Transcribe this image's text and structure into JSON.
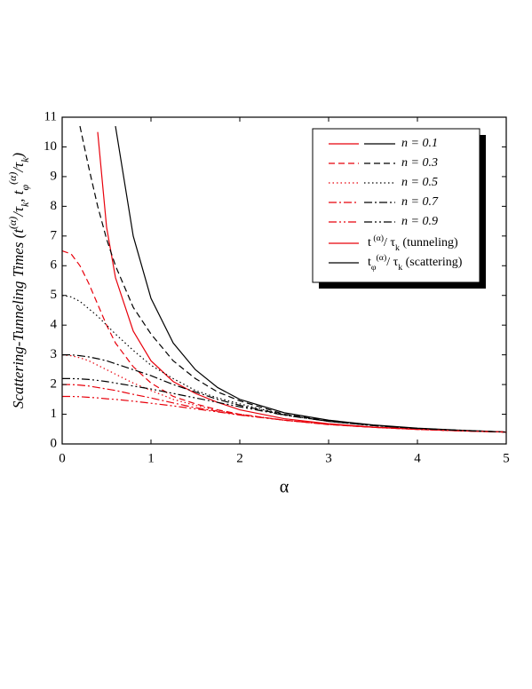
{
  "chart_data": {
    "type": "line",
    "x_label": "α",
    "y_label": [
      {
        "text": "Scattering-Tunneling Times"
      },
      {
        "text": "   (t"
      },
      {
        "text": "(α)",
        "pos": "sup"
      },
      {
        "text": "/τ"
      },
      {
        "text": "k",
        "pos": "sub"
      },
      {
        "text": ",  t"
      },
      {
        "text": "φ",
        "pos": "sub"
      },
      {
        "text": "(α)",
        "pos": "sup"
      },
      {
        "text": "/τ"
      },
      {
        "text": "k",
        "pos": "sub"
      },
      {
        "text": ")"
      }
    ],
    "xlim": [
      0,
      5
    ],
    "xticks": [
      0,
      1,
      2,
      3,
      4,
      5
    ],
    "ylim": [
      0,
      11
    ],
    "yticks": [
      0,
      1,
      2,
      3,
      4,
      5,
      6,
      7,
      8,
      9,
      10,
      11
    ],
    "legend": "upper right",
    "x": [
      0,
      0.1,
      0.2,
      0.3,
      0.4,
      0.5,
      0.6,
      0.8,
      1,
      1.25,
      1.5,
      1.75,
      2,
      2.5,
      3,
      3.5,
      4,
      4.5,
      5
    ],
    "kinds": {
      "tunneling": {
        "color": "#e8000b",
        "label": [
          {
            "text": "t"
          },
          {
            "text": " (α)",
            "pos": "sup"
          },
          {
            "text": "/ τ"
          },
          {
            "text": "k",
            "pos": "sub"
          },
          {
            "text": " (tunneling)"
          }
        ]
      },
      "scattering": {
        "color": "#000000",
        "label": [
          {
            "text": "t"
          },
          {
            "text": "φ",
            "pos": "sub"
          },
          {
            "text": "(α)",
            "pos": "sup"
          },
          {
            "text": "/ τ"
          },
          {
            "text": "k",
            "pos": "sub"
          },
          {
            "text": " (scattering)"
          }
        ]
      }
    },
    "groups": [
      {
        "name": "n = 0.1",
        "dash": "solid",
        "tunneling": [
          null,
          null,
          null,
          null,
          10.5,
          7.3,
          5.6,
          3.8,
          2.8,
          2.1,
          1.7,
          1.4,
          1.15,
          0.85,
          0.68,
          0.57,
          0.5,
          0.44,
          0.4
        ],
        "scattering": [
          null,
          null,
          null,
          null,
          null,
          null,
          10.7,
          7.0,
          4.9,
          3.4,
          2.5,
          1.9,
          1.5,
          1.05,
          0.8,
          0.64,
          0.53,
          0.46,
          0.4
        ]
      },
      {
        "name": "n = 0.3",
        "dash": "dash",
        "tunneling": [
          6.5,
          6.4,
          6.0,
          5.4,
          4.7,
          4.0,
          3.4,
          2.6,
          2.05,
          1.6,
          1.35,
          1.15,
          1.0,
          0.8,
          0.65,
          0.56,
          0.49,
          0.44,
          0.4
        ],
        "scattering": [
          null,
          null,
          10.7,
          9.3,
          8.0,
          6.9,
          6.0,
          4.6,
          3.7,
          2.8,
          2.2,
          1.75,
          1.45,
          1.0,
          0.78,
          0.63,
          0.52,
          0.46,
          0.4
        ]
      },
      {
        "name": "n = 0.5",
        "dash": "dot",
        "tunneling": [
          3.0,
          2.97,
          2.9,
          2.8,
          2.65,
          2.5,
          2.35,
          2.05,
          1.8,
          1.5,
          1.3,
          1.12,
          1.0,
          0.8,
          0.66,
          0.56,
          0.49,
          0.44,
          0.4
        ],
        "scattering": [
          5.0,
          4.95,
          4.8,
          4.55,
          4.3,
          4.0,
          3.7,
          3.15,
          2.65,
          2.2,
          1.8,
          1.55,
          1.35,
          0.98,
          0.76,
          0.62,
          0.52,
          0.45,
          0.4
        ]
      },
      {
        "name": "n = 0.7",
        "dash": "dashdot",
        "tunneling": [
          2.0,
          2.0,
          1.98,
          1.95,
          1.9,
          1.85,
          1.8,
          1.67,
          1.55,
          1.38,
          1.22,
          1.1,
          0.98,
          0.8,
          0.66,
          0.56,
          0.49,
          0.44,
          0.4
        ],
        "scattering": [
          3.0,
          3.0,
          2.97,
          2.93,
          2.87,
          2.8,
          2.7,
          2.5,
          2.3,
          2.0,
          1.75,
          1.5,
          1.3,
          0.98,
          0.76,
          0.62,
          0.52,
          0.45,
          0.4
        ]
      },
      {
        "name": "n = 0.9",
        "dash": "dashdotdot",
        "tunneling": [
          1.6,
          1.6,
          1.59,
          1.57,
          1.55,
          1.52,
          1.5,
          1.44,
          1.37,
          1.28,
          1.18,
          1.08,
          0.97,
          0.8,
          0.66,
          0.56,
          0.49,
          0.44,
          0.4
        ],
        "scattering": [
          2.2,
          2.2,
          2.19,
          2.17,
          2.14,
          2.1,
          2.05,
          1.95,
          1.85,
          1.7,
          1.55,
          1.4,
          1.25,
          0.97,
          0.76,
          0.62,
          0.52,
          0.45,
          0.4
        ]
      }
    ]
  }
}
